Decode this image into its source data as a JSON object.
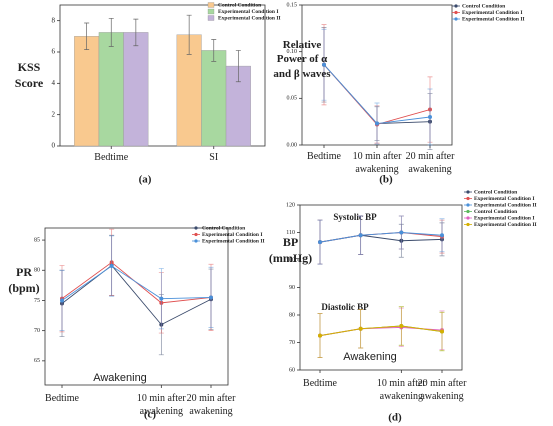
{
  "chart_data": [
    {
      "type": "bar",
      "ylabel": "KSS Score",
      "caption": "(a)",
      "categories": [
        "Bedtime",
        "SI"
      ],
      "series": [
        {
          "name": "Control Condition",
          "color": "#f9c98f",
          "values": [
            7.0,
            7.1
          ],
          "errors": [
            0.85,
            1.25
          ]
        },
        {
          "name": "Experimental Condition I",
          "color": "#a8d8a0",
          "values": [
            7.25,
            6.1
          ],
          "errors": [
            0.9,
            0.7
          ]
        },
        {
          "name": "Experimental Condition II",
          "color": "#c3b3da",
          "values": [
            7.25,
            5.1
          ],
          "errors": [
            0.85,
            1.0
          ]
        }
      ],
      "ylim": [
        0,
        9
      ],
      "yticks": [
        0,
        2,
        4,
        6,
        8
      ],
      "legend": "upper right"
    },
    {
      "type": "line",
      "ylabel": "Relative Power of α and β waves",
      "caption": "(b)",
      "categories": [
        "Bedtime",
        "10 min after awakening",
        "20 min after awakening"
      ],
      "series": [
        {
          "name": "Control Condition",
          "color": "#3a4a6b",
          "values": [
            0.086,
            0.023,
            0.025
          ],
          "errors": [
            0.04,
            0.018,
            0.03
          ]
        },
        {
          "name": "Experimental Condition I",
          "color": "#e05050",
          "values": [
            0.086,
            0.022,
            0.038
          ],
          "errors": [
            0.043,
            0.02,
            0.035
          ]
        },
        {
          "name": "Experimental Condition II",
          "color": "#4a90d9",
          "values": [
            0.086,
            0.023,
            0.03
          ],
          "errors": [
            0.038,
            0.022,
            0.03
          ]
        }
      ],
      "ylim": [
        0,
        0.15
      ],
      "yticks": [
        {
          "value": 0,
          "label": "0.00"
        },
        {
          "value": 0.05,
          "label": "0.05"
        },
        {
          "value": 0.1,
          "label": "0.10"
        },
        {
          "value": 0.15,
          "label": "0.15"
        }
      ],
      "legend": "upper right"
    },
    {
      "type": "line",
      "ylabel": "PR (bpm)",
      "caption": "(c)",
      "categories": [
        "Bedtime",
        null,
        "10 min after awakening",
        "20 min after awakening"
      ],
      "annotations": [
        "Awakening"
      ],
      "series": [
        {
          "name": "Control Condition",
          "color": "#3a4a6b",
          "values": [
            74.5,
            80.8,
            71.0,
            75.2
          ],
          "errors": [
            5.5,
            5,
            5,
            5
          ]
        },
        {
          "name": "Experimental Condition I",
          "color": "#e05050",
          "values": [
            75.3,
            81.3,
            74.6,
            75.5
          ],
          "errors": [
            5.5,
            5.5,
            5,
            5.5
          ]
        },
        {
          "name": "Experimental Condition II",
          "color": "#4a90d9",
          "values": [
            75.0,
            80.7,
            75.3,
            75.5
          ],
          "errors": [
            5,
            5,
            5,
            5
          ]
        }
      ],
      "ylim": [
        61,
        87
      ],
      "yticks": [
        65,
        70,
        75,
        80,
        85
      ],
      "legend": "upper right"
    },
    {
      "type": "line",
      "ylabel": "BP (mmHg)",
      "caption": "(d)",
      "categories": [
        "Bedtime",
        null,
        "10 min after awakening",
        "20 min after awakening"
      ],
      "annotations": [
        "Systolic BP",
        "Diastolic BP",
        "Awakening"
      ],
      "series": [
        {
          "name": "Control Condition",
          "color": "#3a4a6b",
          "values": [
            106.5,
            109,
            107,
            107.5
          ],
          "errors": [
            8,
            7,
            6,
            6
          ]
        },
        {
          "name": "Experimental Condition I",
          "color": "#e05050",
          "values": [
            106.5,
            109,
            110,
            108.5
          ],
          "errors": [
            8,
            7,
            6,
            6
          ]
        },
        {
          "name": "Experimental Condition II",
          "color": "#4a90d9",
          "values": [
            106.5,
            109,
            110,
            109
          ],
          "errors": [
            8,
            7,
            6,
            6
          ]
        },
        {
          "name": "Control Condition",
          "color": "#5cb85c",
          "values": [
            72.5,
            75,
            76,
            74
          ],
          "errors": [
            8,
            7,
            7,
            7
          ]
        },
        {
          "name": "Experimental Condition I",
          "color": "#e060c0",
          "values": [
            72.5,
            75,
            75.5,
            74.5
          ],
          "errors": [
            8,
            7,
            7,
            7
          ]
        },
        {
          "name": "Experimental Condition II",
          "color": "#d4b000",
          "values": [
            72.5,
            75,
            76,
            74
          ],
          "errors": [
            8,
            7,
            7,
            7
          ]
        }
      ],
      "ylim": [
        60,
        120
      ],
      "yticks": [
        60,
        70,
        80,
        90,
        100,
        110,
        120
      ],
      "legend": "upper right"
    }
  ]
}
